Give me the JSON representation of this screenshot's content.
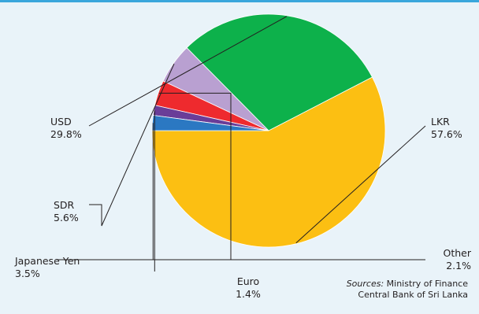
{
  "chart_data": {
    "type": "pie",
    "slices": [
      {
        "label": "LKR",
        "value": 57.6,
        "value_label": "57.6%",
        "color": "#fcbf12"
      },
      {
        "label": "USD",
        "value": 29.8,
        "value_label": "29.8%",
        "color": "#0db14b"
      },
      {
        "label": "SDR",
        "value": 5.6,
        "value_label": "5.6%",
        "color": "#b9a0d1"
      },
      {
        "label": "Japanese Yen",
        "value": 3.5,
        "value_label": "3.5%",
        "color": "#ee2a2e"
      },
      {
        "label": "Euro",
        "value": 1.4,
        "value_label": "1.4%",
        "color": "#6a3d98"
      },
      {
        "label": "Other",
        "value": 2.1,
        "value_label": "2.1%",
        "color": "#2b78c2"
      }
    ],
    "start_angle_deg": 180,
    "direction": "counterclockwise",
    "labels_style": "leader-lines",
    "legend": "none"
  },
  "sources": {
    "prefix": "Sources:",
    "line1": "Ministry of Finance",
    "line2": "Central Bank of Sri Lanka"
  },
  "colors": {
    "background": "#e9f3f9",
    "top_rule": "#3aa6dc",
    "leader_line": "#231f20"
  }
}
